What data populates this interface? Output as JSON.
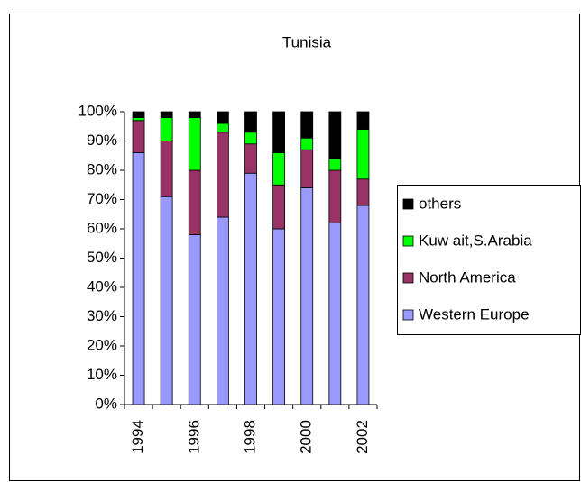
{
  "chart_data": {
    "type": "stacked-bar",
    "title": "Tunisia",
    "categories": [
      "1994",
      null,
      "1996",
      null,
      "1998",
      null,
      "2000",
      null,
      "2002"
    ],
    "series": [
      {
        "name": "Western Europe",
        "color": "#9999ff",
        "values": [
          86,
          71,
          58,
          64,
          79,
          60,
          74,
          62,
          68
        ]
      },
      {
        "name": "North America",
        "color": "#993366",
        "values": [
          11,
          19,
          22,
          29,
          10,
          15,
          13,
          18,
          9
        ]
      },
      {
        "name": "Kuw ait,S.Arabia",
        "color": "#00ff00",
        "values": [
          1,
          8,
          18,
          3,
          4,
          11,
          4,
          4,
          17
        ]
      },
      {
        "name": "others",
        "color": "#000000",
        "values": [
          2,
          2,
          2,
          4,
          7,
          14,
          9,
          16,
          6
        ]
      }
    ],
    "ylim": [
      0,
      100
    ],
    "yticks": [
      {
        "value": 0,
        "label": "0%"
      },
      {
        "value": 10,
        "label": "10%"
      },
      {
        "value": 20,
        "label": "20%"
      },
      {
        "value": 30,
        "label": "30%"
      },
      {
        "value": 40,
        "label": "40%"
      },
      {
        "value": 50,
        "label": "50%"
      },
      {
        "value": 60,
        "label": "60%"
      },
      {
        "value": 70,
        "label": "70%"
      },
      {
        "value": 80,
        "label": "80%"
      },
      {
        "value": 90,
        "label": "90%"
      },
      {
        "value": 100,
        "label": "100%"
      }
    ],
    "legend": "right"
  }
}
